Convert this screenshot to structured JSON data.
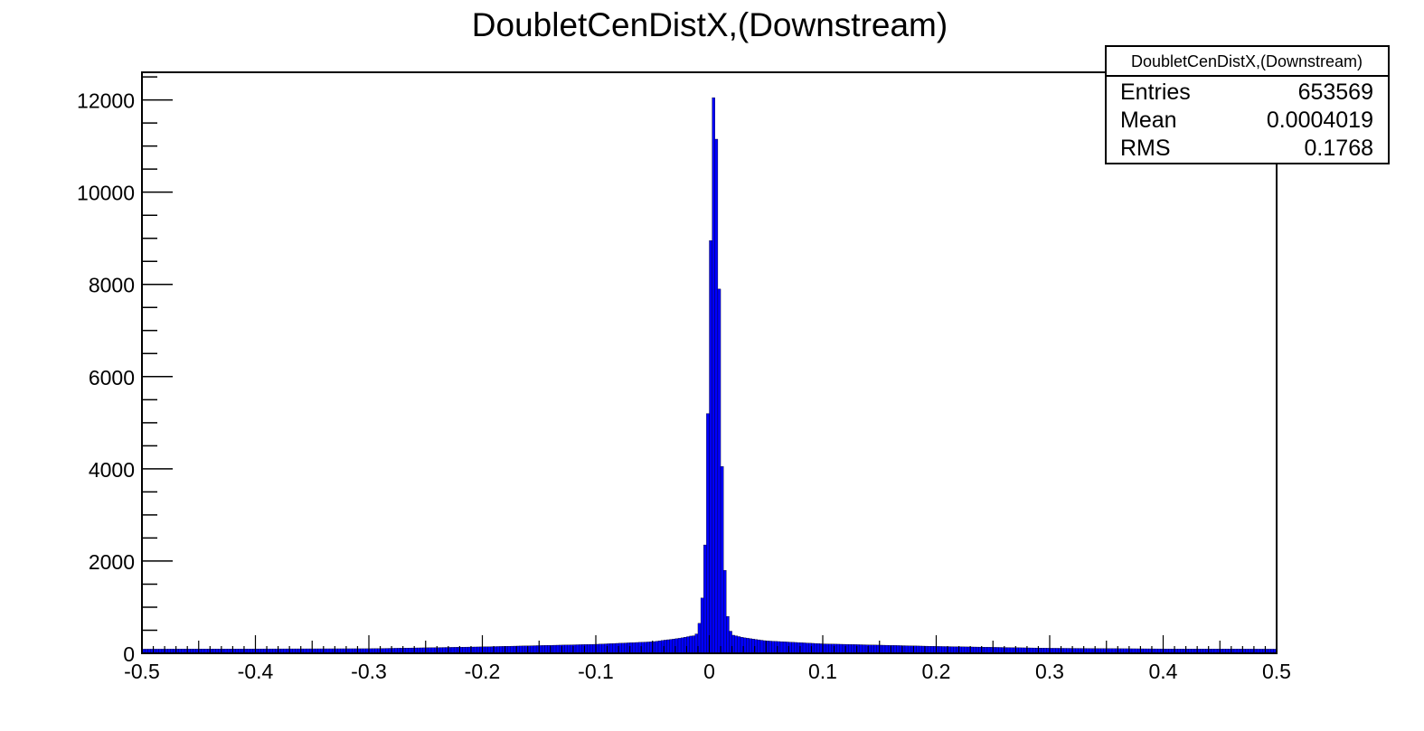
{
  "chart_data": {
    "type": "bar",
    "title": "DoubletCenDistX,(Downstream)",
    "xlabel": "",
    "ylabel": "",
    "xlim": [
      -0.5,
      0.5
    ],
    "ylim": [
      0,
      12600
    ],
    "x_ticks": [
      "-0.5",
      "-0.4",
      "-0.3",
      "-0.2",
      "-0.1",
      "0",
      "0.1",
      "0.2",
      "0.3",
      "0.4",
      "0.5"
    ],
    "y_ticks": [
      "0",
      "2000",
      "4000",
      "6000",
      "8000",
      "10000",
      "12000"
    ],
    "bar_color": "#0000ff",
    "legend_position": "top-right",
    "grid": false,
    "stats_box": {
      "title": "DoubletCenDistX,(Downstream)",
      "rows": [
        {
          "label": "Entries",
          "value": "653569"
        },
        {
          "label": "Mean",
          "value": "0.0004019"
        },
        {
          "label": "RMS",
          "value": "0.1768"
        }
      ]
    },
    "bin_width": 0.0025,
    "peak_bins": [
      {
        "x": -0.0125,
        "y": 420
      },
      {
        "x": -0.01,
        "y": 650
      },
      {
        "x": -0.0075,
        "y": 1200
      },
      {
        "x": -0.005,
        "y": 2350
      },
      {
        "x": -0.0025,
        "y": 5200
      },
      {
        "x": 0.0,
        "y": 8950
      },
      {
        "x": 0.0025,
        "y": 12050
      },
      {
        "x": 0.005,
        "y": 11150
      },
      {
        "x": 0.0075,
        "y": 7900
      },
      {
        "x": 0.01,
        "y": 4050
      },
      {
        "x": 0.0125,
        "y": 1800
      },
      {
        "x": 0.015,
        "y": 800
      },
      {
        "x": 0.0175,
        "y": 480
      }
    ],
    "background_profile": [
      {
        "x": -0.5,
        "y": 90
      },
      {
        "x": -0.4,
        "y": 95
      },
      {
        "x": -0.3,
        "y": 100
      },
      {
        "x": -0.2,
        "y": 140
      },
      {
        "x": -0.1,
        "y": 195
      },
      {
        "x": -0.05,
        "y": 250
      },
      {
        "x": -0.025,
        "y": 330
      },
      {
        "x": -0.015,
        "y": 380
      },
      {
        "x": 0.02,
        "y": 400
      },
      {
        "x": 0.03,
        "y": 340
      },
      {
        "x": 0.05,
        "y": 270
      },
      {
        "x": 0.1,
        "y": 205
      },
      {
        "x": 0.2,
        "y": 150
      },
      {
        "x": 0.3,
        "y": 110
      },
      {
        "x": 0.4,
        "y": 95
      },
      {
        "x": 0.5,
        "y": 90
      }
    ]
  }
}
